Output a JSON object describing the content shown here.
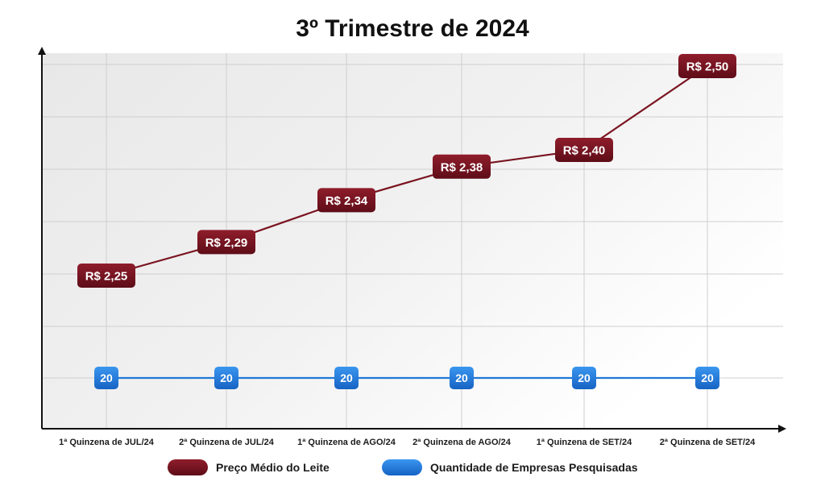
{
  "chart_data": {
    "type": "line",
    "title": "3º Trimestre de 2024",
    "xlabel": "",
    "ylabel": "",
    "categories": [
      "1ª Quinzena de JUL/24",
      "2ª Quinzena de JUL/24",
      "1ª Quinzena de AGO/24",
      "2ª Quinzena de AGO/24",
      "1ª Quinzena de SET/24",
      "2ª Quinzena de SET/24"
    ],
    "series": [
      {
        "name": "Preço Médio do Leite",
        "values": [
          2.25,
          2.29,
          2.34,
          2.38,
          2.4,
          2.5
        ],
        "labels": [
          "R$ 2,25",
          "R$ 2,29",
          "R$ 2,34",
          "R$ 2,38",
          "R$ 2,40",
          "R$ 2,50"
        ],
        "color": "#7a1420"
      },
      {
        "name": "Quantidade de Empresas Pesquisadas",
        "values": [
          20,
          20,
          20,
          20,
          20,
          20
        ],
        "labels": [
          "20",
          "20",
          "20",
          "20",
          "20",
          "20"
        ],
        "color": "#1f78d6"
      }
    ],
    "grid": true,
    "legend": "bottom"
  }
}
